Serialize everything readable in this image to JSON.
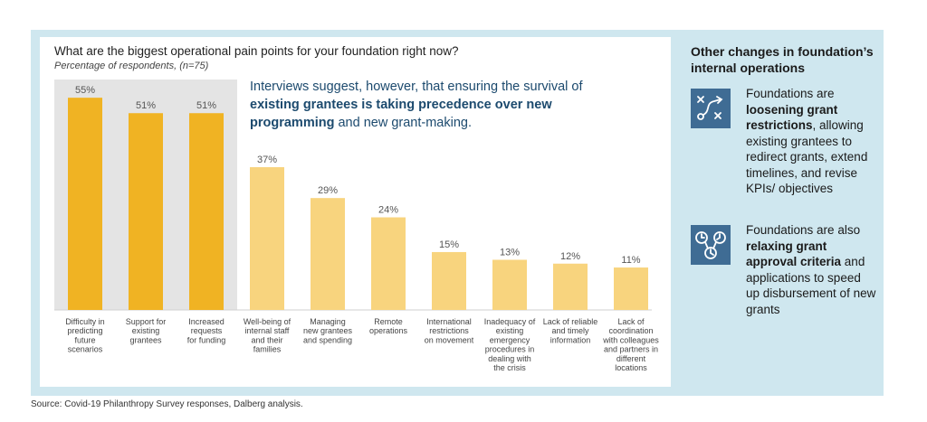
{
  "chart_data": {
    "type": "bar",
    "title": "What are the biggest operational pain points for your foundation right now?",
    "subtitle": "Percentage of respondents, (n=75)",
    "unit": "%",
    "ylim": [
      0,
      60
    ],
    "categories": [
      "Difficulty in predicting future scenarios",
      "Support for existing grantees",
      "Increased requests for funding",
      "Well-being of internal staff and their families",
      "Managing new grantees and spending",
      "Remote operations",
      "International restrictions on movement",
      "Inadequacy of existing emergency procedures in dealing with the crisis",
      "Lack of reliable and timely information",
      "Lack of coordination with colleagues and partners in different locations"
    ],
    "category_lines": [
      [
        "Difficulty in",
        "predicting",
        "future",
        "scenarios"
      ],
      [
        "Support for",
        "existing",
        "grantees"
      ],
      [
        "Increased",
        "requests",
        "for funding"
      ],
      [
        "Well-being of",
        "internal staff",
        "and their",
        "families"
      ],
      [
        "Managing",
        "new grantees",
        "and spending"
      ],
      [
        "Remote",
        "operations"
      ],
      [
        "International",
        "restrictions",
        "on movement"
      ],
      [
        "Inadequacy of",
        "existing",
        "emergency",
        "procedures in",
        "dealing with",
        "the crisis"
      ],
      [
        "Lack of reliable",
        "and timely",
        "information"
      ],
      [
        "Lack of",
        "coordination",
        "with colleagues",
        "and partners in",
        "different",
        "locations"
      ]
    ],
    "values": [
      55,
      51,
      51,
      37,
      29,
      24,
      15,
      13,
      12,
      11
    ],
    "value_labels": [
      "55%",
      "51%",
      "51%",
      "37%",
      "29%",
      "24%",
      "15%",
      "13%",
      "12%",
      "11%"
    ],
    "highlight_count": 3,
    "colors": {
      "highlight": "#f0b323",
      "normal": "#f8d47e",
      "highlight_bg": "#e4e4e4",
      "label": "#555555"
    }
  },
  "callout": {
    "parts": [
      {
        "text": "Interviews suggest, however, that ensuring the survival of ",
        "bold": false
      },
      {
        "text": "existing grantees is taking precedence over new programming",
        "bold": true
      },
      {
        "text": " and new grant-making.",
        "bold": false
      }
    ]
  },
  "sidebar": {
    "title": "Other changes in foundation’s internal operations",
    "items": [
      {
        "icon": "strategy-path-icon",
        "parts": [
          {
            "text": "Foundations are ",
            "bold": false
          },
          {
            "text": "loosening grant restrictions",
            "bold": true
          },
          {
            "text": ", allowing existing grantees to redirect grants, extend timelines, and revise KPIs/ objectives",
            "bold": false
          }
        ]
      },
      {
        "icon": "clock-gears-icon",
        "parts": [
          {
            "text": "Foundations are also ",
            "bold": false
          },
          {
            "text": "relaxing grant approval criteria",
            "bold": true
          },
          {
            "text": " and applications to speed up disbursement of  new grants",
            "bold": false
          }
        ]
      }
    ],
    "icon_color": "#3f6c94"
  },
  "source": "Source: Covid-19 Philanthropy Survey responses, Dalberg analysis."
}
